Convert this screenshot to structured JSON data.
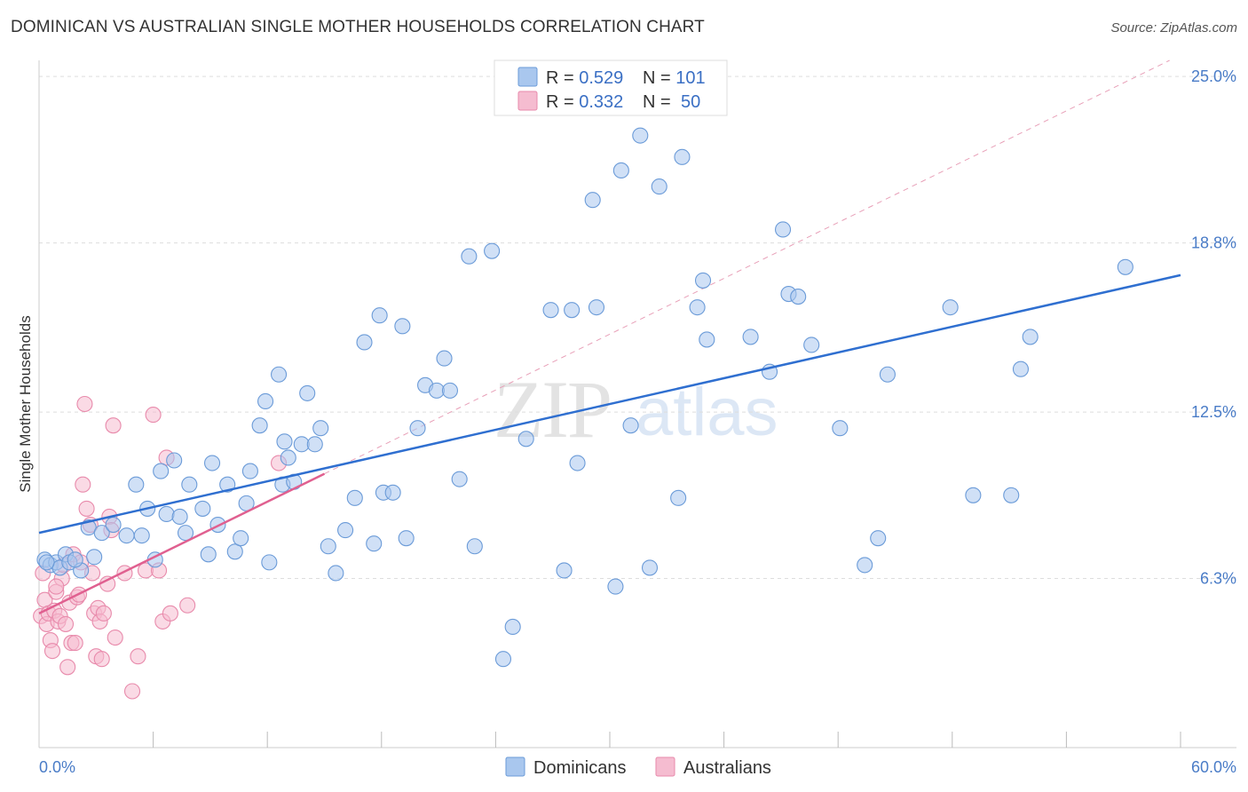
{
  "title": "DOMINICAN VS AUSTRALIAN SINGLE MOTHER HOUSEHOLDS CORRELATION CHART",
  "source": "Source: ZipAtlas.com",
  "watermark": {
    "part1": "ZIP",
    "part2": "atlas"
  },
  "colors": {
    "blue_fill": "#a9c7ee",
    "blue_stroke": "#6b9bd8",
    "blue_line": "#2f6fd0",
    "pink_fill": "#f5bcd0",
    "pink_stroke": "#e88aab",
    "pink_line": "#e06090",
    "tick_text": "#4a7cc7",
    "grid": "#dddddd"
  },
  "legend": {
    "rows": [
      {
        "r_label": "R = ",
        "r_value": "0.529",
        "n_label": "N = ",
        "n_value": "101",
        "color": "blue"
      },
      {
        "r_label": "R = ",
        "r_value": "0.332",
        "n_label": "N = ",
        "n_value": "50",
        "color": "pink"
      }
    ]
  },
  "bottom_legend": {
    "items": [
      "Dominicans",
      "Australians"
    ]
  },
  "chart_data": {
    "type": "scatter",
    "title": "DOMINICAN VS AUSTRALIAN SINGLE MOTHER HOUSEHOLDS CORRELATION CHART",
    "xlabel": "",
    "ylabel": "Single Mother Households",
    "xlim": [
      0,
      60
    ],
    "ylim": [
      0,
      25.6
    ],
    "x_tick_labels": [
      "0.0%",
      "60.0%"
    ],
    "y_ticks": [
      6.3,
      12.5,
      18.8,
      25.0
    ],
    "y_tick_labels": [
      "6.3%",
      "12.5%",
      "18.8%",
      "25.0%"
    ],
    "grid": "horizontal dashed",
    "legend_position": "top-center",
    "series": [
      {
        "name": "Dominicans",
        "color": "blue",
        "r": 0.529,
        "n": 101,
        "trend": {
          "x": [
            0,
            60
          ],
          "y": [
            8.0,
            17.6
          ]
        },
        "points": [
          [
            0.3,
            7.0
          ],
          [
            0.6,
            6.8
          ],
          [
            0.9,
            6.9
          ],
          [
            1.1,
            6.7
          ],
          [
            1.4,
            7.2
          ],
          [
            1.6,
            6.9
          ],
          [
            2.2,
            6.6
          ],
          [
            2.6,
            8.2
          ],
          [
            2.9,
            7.1
          ],
          [
            3.3,
            8.0
          ],
          [
            3.9,
            8.3
          ],
          [
            4.6,
            7.9
          ],
          [
            5.1,
            9.8
          ],
          [
            5.7,
            8.9
          ],
          [
            6.1,
            7.0
          ],
          [
            6.4,
            10.3
          ],
          [
            6.7,
            8.7
          ],
          [
            7.1,
            10.7
          ],
          [
            7.4,
            8.6
          ],
          [
            7.7,
            8.0
          ],
          [
            7.9,
            9.8
          ],
          [
            8.6,
            8.9
          ],
          [
            8.9,
            7.2
          ],
          [
            9.1,
            10.6
          ],
          [
            9.4,
            8.3
          ],
          [
            9.9,
            9.8
          ],
          [
            10.3,
            7.3
          ],
          [
            10.6,
            7.8
          ],
          [
            10.9,
            9.1
          ],
          [
            11.1,
            10.3
          ],
          [
            11.6,
            12.0
          ],
          [
            11.9,
            12.9
          ],
          [
            12.1,
            6.9
          ],
          [
            12.6,
            13.9
          ],
          [
            12.8,
            9.8
          ],
          [
            13.1,
            10.8
          ],
          [
            13.4,
            9.9
          ],
          [
            13.8,
            11.3
          ],
          [
            14.1,
            13.2
          ],
          [
            14.5,
            11.3
          ],
          [
            14.8,
            11.9
          ],
          [
            15.2,
            7.5
          ],
          [
            15.6,
            6.5
          ],
          [
            16.1,
            8.1
          ],
          [
            16.6,
            9.3
          ],
          [
            17.1,
            15.1
          ],
          [
            17.6,
            7.6
          ],
          [
            17.9,
            16.1
          ],
          [
            18.1,
            9.5
          ],
          [
            18.6,
            9.5
          ],
          [
            19.1,
            15.7
          ],
          [
            19.3,
            7.8
          ],
          [
            19.9,
            11.9
          ],
          [
            20.3,
            13.5
          ],
          [
            20.9,
            13.3
          ],
          [
            21.3,
            14.5
          ],
          [
            21.6,
            13.3
          ],
          [
            22.1,
            10.0
          ],
          [
            22.6,
            18.3
          ],
          [
            22.9,
            7.5
          ],
          [
            23.8,
            18.5
          ],
          [
            24.4,
            3.3
          ],
          [
            24.9,
            4.5
          ],
          [
            25.6,
            11.5
          ],
          [
            26.9,
            16.3
          ],
          [
            27.6,
            6.6
          ],
          [
            28.0,
            16.3
          ],
          [
            28.3,
            10.6
          ],
          [
            29.1,
            20.4
          ],
          [
            29.3,
            16.4
          ],
          [
            30.3,
            6.0
          ],
          [
            30.6,
            21.5
          ],
          [
            31.1,
            12.0
          ],
          [
            31.6,
            22.8
          ],
          [
            32.1,
            6.7
          ],
          [
            32.6,
            20.9
          ],
          [
            33.6,
            9.3
          ],
          [
            33.8,
            22.0
          ],
          [
            34.6,
            16.4
          ],
          [
            34.9,
            17.4
          ],
          [
            35.1,
            15.2
          ],
          [
            37.4,
            15.3
          ],
          [
            38.4,
            14.0
          ],
          [
            39.1,
            19.3
          ],
          [
            39.4,
            16.9
          ],
          [
            39.9,
            16.8
          ],
          [
            40.6,
            15.0
          ],
          [
            42.1,
            11.9
          ],
          [
            43.4,
            6.8
          ],
          [
            44.1,
            7.8
          ],
          [
            44.6,
            13.9
          ],
          [
            47.9,
            16.4
          ],
          [
            49.1,
            9.4
          ],
          [
            51.1,
            9.4
          ],
          [
            51.6,
            14.1
          ],
          [
            52.1,
            15.3
          ],
          [
            57.1,
            17.9
          ],
          [
            0.4,
            6.9
          ],
          [
            1.9,
            7.0
          ],
          [
            5.4,
            7.9
          ],
          [
            12.9,
            11.4
          ]
        ]
      },
      {
        "name": "Australians",
        "color": "pink",
        "r": 0.332,
        "n": 50,
        "trend": {
          "x": [
            0,
            15
          ],
          "y": [
            5.0,
            10.2
          ]
        },
        "points": [
          [
            0.1,
            4.9
          ],
          [
            0.2,
            6.5
          ],
          [
            0.3,
            5.5
          ],
          [
            0.4,
            4.6
          ],
          [
            0.5,
            5.0
          ],
          [
            0.6,
            4.0
          ],
          [
            0.7,
            3.6
          ],
          [
            0.8,
            5.1
          ],
          [
            0.9,
            5.8
          ],
          [
            1.0,
            4.7
          ],
          [
            1.1,
            4.9
          ],
          [
            1.2,
            6.3
          ],
          [
            1.3,
            6.8
          ],
          [
            1.5,
            3.0
          ],
          [
            1.6,
            5.4
          ],
          [
            1.7,
            3.9
          ],
          [
            1.8,
            7.2
          ],
          [
            1.9,
            3.9
          ],
          [
            2.0,
            5.6
          ],
          [
            2.1,
            5.7
          ],
          [
            2.2,
            6.9
          ],
          [
            2.3,
            9.8
          ],
          [
            2.4,
            12.8
          ],
          [
            2.5,
            8.9
          ],
          [
            2.7,
            8.3
          ],
          [
            2.8,
            6.5
          ],
          [
            2.9,
            5.0
          ],
          [
            3.0,
            3.4
          ],
          [
            3.1,
            5.2
          ],
          [
            3.2,
            4.7
          ],
          [
            3.3,
            3.3
          ],
          [
            3.4,
            5.0
          ],
          [
            3.6,
            6.1
          ],
          [
            3.7,
            8.6
          ],
          [
            3.8,
            8.1
          ],
          [
            3.9,
            12.0
          ],
          [
            4.0,
            4.1
          ],
          [
            4.5,
            6.5
          ],
          [
            4.9,
            2.1
          ],
          [
            5.2,
            3.4
          ],
          [
            5.6,
            6.6
          ],
          [
            6.0,
            12.4
          ],
          [
            6.3,
            6.6
          ],
          [
            6.5,
            4.7
          ],
          [
            6.7,
            10.8
          ],
          [
            6.9,
            5.0
          ],
          [
            7.8,
            5.3
          ],
          [
            12.6,
            10.6
          ],
          [
            1.4,
            4.6
          ],
          [
            0.9,
            6.0
          ]
        ]
      }
    ]
  }
}
